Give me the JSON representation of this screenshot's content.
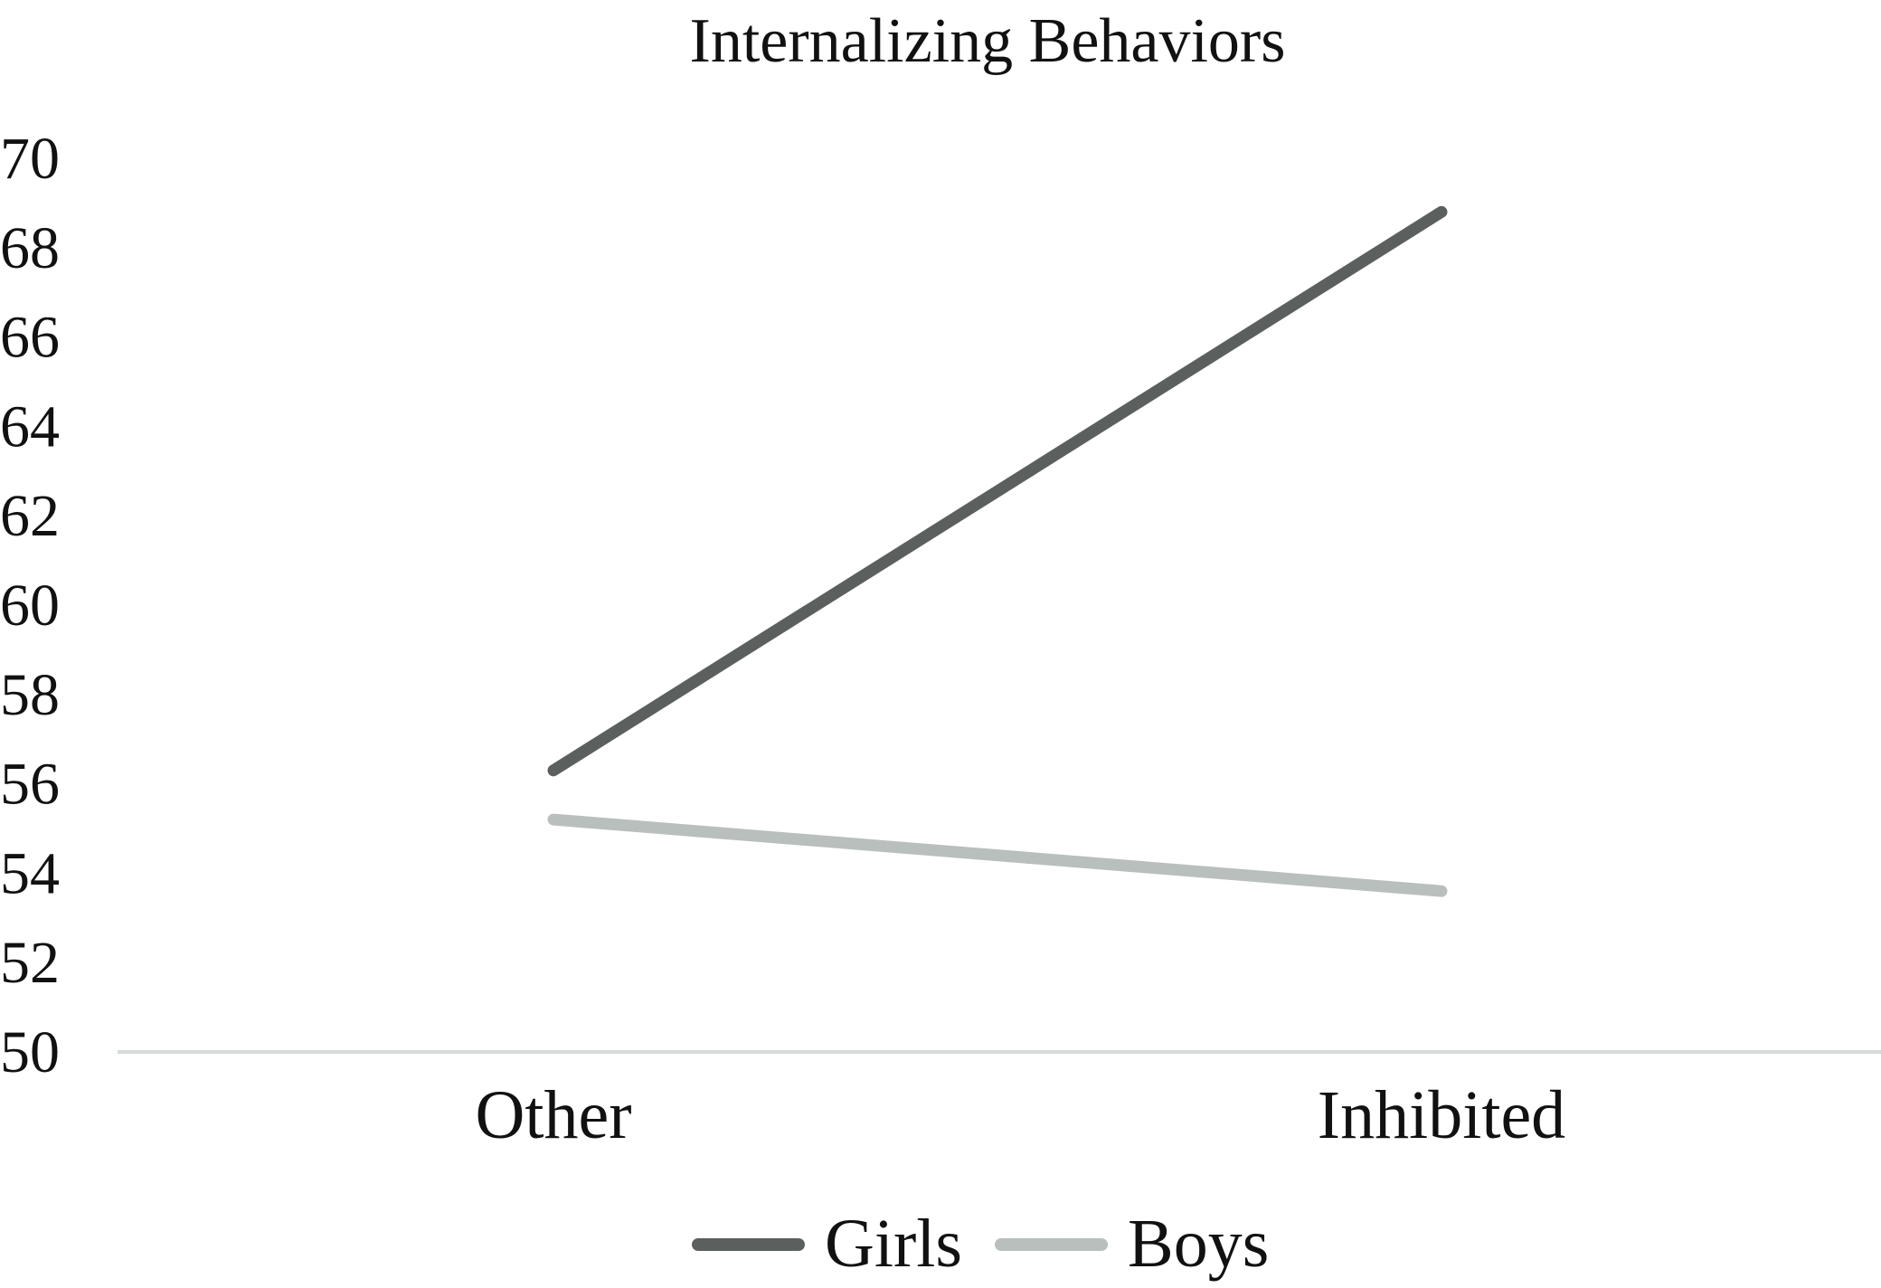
{
  "chart_data": {
    "type": "line",
    "title": "Internalizing Behaviors",
    "xlabel": "",
    "ylabel": "",
    "categories": [
      "Other",
      "Inhibited"
    ],
    "ylim": [
      50,
      70
    ],
    "yticks": [
      "50",
      "52",
      "54",
      "56",
      "58",
      "60",
      "62",
      "64",
      "66",
      "68",
      "70"
    ],
    "grid": false,
    "legend_position": "bottom",
    "series": [
      {
        "name": "Girls",
        "values": [
          56.3,
          68.8
        ],
        "color": "#5b605f"
      },
      {
        "name": "Boys",
        "values": [
          55.2,
          53.6
        ],
        "color": "#b9bfbc"
      }
    ],
    "axis_color": "#d5dbd8"
  }
}
